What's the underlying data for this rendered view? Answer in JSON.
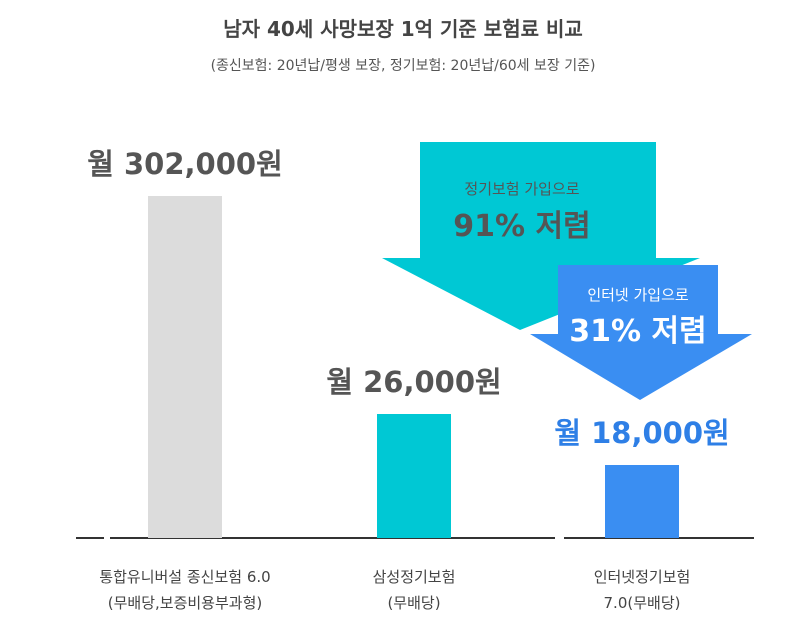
{
  "chart_data": {
    "type": "bar",
    "title": "남자 40세 사망보장 1억 기준 보험료 비교",
    "subtitle": "(종신보험: 20년납/평생 보장, 정기보험: 20년납/60세 보장 기준)",
    "categories": [
      [
        "통합유니버설 종신보험 6.0",
        "(무배당,보증비용부과형)"
      ],
      [
        "삼성정기보험",
        "(무배당)"
      ],
      [
        "인터넷정기보험",
        "7.0(무배당)"
      ]
    ],
    "values": [
      302000,
      26000,
      18000
    ],
    "value_labels": [
      "월 302,000원",
      "월 26,000원",
      "월 18,000원"
    ],
    "bar_colors": [
      "#dcdcdc",
      "#00c8d4",
      "#3a8ef2"
    ],
    "value_label_colors": [
      "#555555",
      "#555555",
      "#2e7fe6"
    ],
    "annotations": [
      {
        "line1": "정기보험 가입으로",
        "line2": "91% 저렴",
        "color": "#00c8d4"
      },
      {
        "line1": "인터넷 가입으로",
        "line2": "31% 저렴",
        "color": "#3a8ef2"
      }
    ]
  }
}
